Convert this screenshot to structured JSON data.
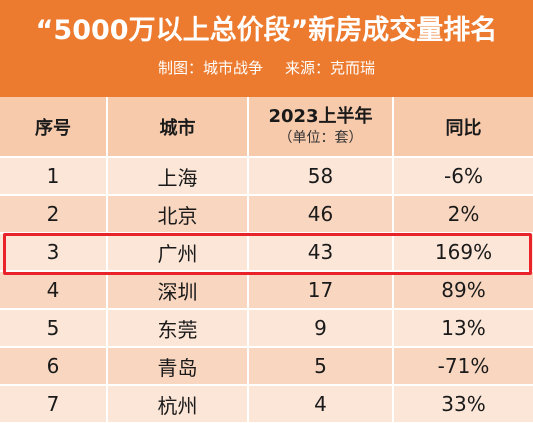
{
  "header": {
    "title": "“5000万以上总价段”新房成交量排名",
    "credit": "制图：城市战争",
    "source": "来源：克而瑞"
  },
  "table": {
    "columns": {
      "rank": "序号",
      "city": "城市",
      "period": "2023上半年",
      "unit": "（单位：套）",
      "yoy": "同比"
    },
    "rows": [
      {
        "rank": "1",
        "city": "上海",
        "count": "58",
        "yoy": "-6%"
      },
      {
        "rank": "2",
        "city": "北京",
        "count": "46",
        "yoy": "2%"
      },
      {
        "rank": "3",
        "city": "广州",
        "count": "43",
        "yoy": "169%"
      },
      {
        "rank": "4",
        "city": "深圳",
        "count": "17",
        "yoy": "89%"
      },
      {
        "rank": "5",
        "city": "东莞",
        "count": "9",
        "yoy": "13%"
      },
      {
        "rank": "6",
        "city": "青岛",
        "count": "5",
        "yoy": "-71%"
      },
      {
        "rank": "7",
        "city": "杭州",
        "count": "4",
        "yoy": "33%"
      }
    ],
    "highlighted_rank": "3"
  },
  "colors": {
    "header_bg": "#ec7b2f",
    "column_header_bg": "#f7caac",
    "row_light": "#fce6d8",
    "row_dark": "#f9d6bf",
    "highlight_border": "#e8232a"
  }
}
